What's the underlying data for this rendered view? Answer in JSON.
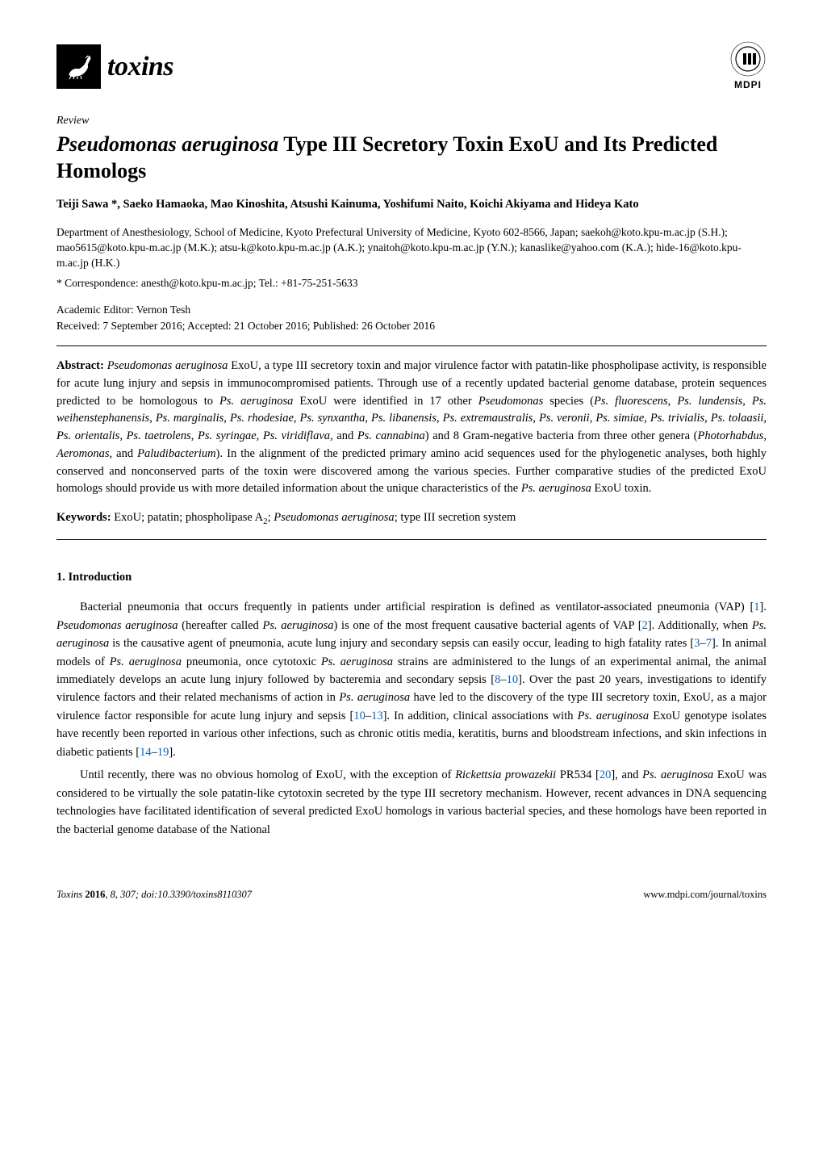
{
  "journal": {
    "name": "toxins"
  },
  "publisher": {
    "name": "MDPI"
  },
  "article_type": "Review",
  "title": {
    "full": "Pseudomonas aeruginosa Type III Secretory Toxin ExoU and Its Predicted Homologs",
    "italic_part": "Pseudomonas aeruginosa",
    "rest_part": " Type III Secretory Toxin ExoU and Its Predicted Homologs"
  },
  "authors": "Teiji Sawa *, Saeko Hamaoka, Mao Kinoshita, Atsushi Kainuma, Yoshifumi Naito, Koichi Akiyama and Hideya Kato",
  "affiliation": "Department of Anesthesiology, School of Medicine, Kyoto Prefectural University of Medicine, Kyoto 602-8566, Japan; saekoh@koto.kpu-m.ac.jp (S.H.); mao5615@koto.kpu-m.ac.jp (M.K.); atsu-k@koto.kpu-m.ac.jp (A.K.); ynaitoh@koto.kpu-m.ac.jp (Y.N.); kanaslike@yahoo.com (K.A.); hide-16@koto.kpu-m.ac.jp (H.K.)",
  "correspondence": "* Correspondence: anesth@koto.kpu-m.ac.jp; Tel.: +81-75-251-5633",
  "editor": "Academic Editor: Vernon Tesh",
  "dates": "Received: 7 September 2016; Accepted: 21 October 2016; Published: 26 October 2016",
  "abstract": {
    "label": "Abstract:",
    "text_parts": [
      {
        "italic": true,
        "t": "Pseudomonas aeruginosa"
      },
      {
        "italic": false,
        "t": " ExoU, a type III secretory toxin and major virulence factor with patatin-like phospholipase activity, is responsible for acute lung injury and sepsis in immunocompromised patients. Through use of a recently updated bacterial genome database, protein sequences predicted to be homologous to "
      },
      {
        "italic": true,
        "t": "Ps. aeruginosa"
      },
      {
        "italic": false,
        "t": " ExoU were identified in 17 other "
      },
      {
        "italic": true,
        "t": "Pseudomonas"
      },
      {
        "italic": false,
        "t": " species ("
      },
      {
        "italic": true,
        "t": "Ps. fluorescens"
      },
      {
        "italic": false,
        "t": ", "
      },
      {
        "italic": true,
        "t": "Ps. lundensis"
      },
      {
        "italic": false,
        "t": ", "
      },
      {
        "italic": true,
        "t": "Ps. weihenstephanensis"
      },
      {
        "italic": false,
        "t": ", "
      },
      {
        "italic": true,
        "t": "Ps. marginalis, Ps. rhodesiae, Ps. synxantha"
      },
      {
        "italic": false,
        "t": ", "
      },
      {
        "italic": true,
        "t": "Ps. libanensis"
      },
      {
        "italic": false,
        "t": ", "
      },
      {
        "italic": true,
        "t": "Ps. extremaustralis"
      },
      {
        "italic": false,
        "t": ", "
      },
      {
        "italic": true,
        "t": "Ps. veronii"
      },
      {
        "italic": false,
        "t": ", "
      },
      {
        "italic": true,
        "t": "Ps. simiae"
      },
      {
        "italic": false,
        "t": ", "
      },
      {
        "italic": true,
        "t": "Ps. trivialis"
      },
      {
        "italic": false,
        "t": ", "
      },
      {
        "italic": true,
        "t": "Ps. tolaasii"
      },
      {
        "italic": false,
        "t": ", "
      },
      {
        "italic": true,
        "t": "Ps. orientalis"
      },
      {
        "italic": false,
        "t": ", "
      },
      {
        "italic": true,
        "t": "Ps. taetrolens"
      },
      {
        "italic": false,
        "t": ", "
      },
      {
        "italic": true,
        "t": "Ps. syringae"
      },
      {
        "italic": false,
        "t": ", "
      },
      {
        "italic": true,
        "t": "Ps. viridiflava"
      },
      {
        "italic": false,
        "t": ", and "
      },
      {
        "italic": true,
        "t": "Ps. cannabina"
      },
      {
        "italic": false,
        "t": ") and 8 Gram-negative bacteria from three other genera ("
      },
      {
        "italic": true,
        "t": "Photorhabdus"
      },
      {
        "italic": false,
        "t": ", "
      },
      {
        "italic": true,
        "t": "Aeromonas"
      },
      {
        "italic": false,
        "t": ", and "
      },
      {
        "italic": true,
        "t": "Paludibacterium"
      },
      {
        "italic": false,
        "t": "). In the alignment of the predicted primary amino acid sequences used for the phylogenetic analyses, both highly conserved and nonconserved parts of the toxin were discovered among the various species. Further comparative studies of the predicted ExoU homologs should provide us with more detailed information about the unique characteristics of the "
      },
      {
        "italic": true,
        "t": "Ps. aeruginosa"
      },
      {
        "italic": false,
        "t": " ExoU toxin."
      }
    ]
  },
  "keywords": {
    "label": "Keywords:",
    "text_parts": [
      {
        "italic": false,
        "t": " ExoU; patatin; phospholipase A"
      },
      {
        "sub": true,
        "t": "2"
      },
      {
        "italic": false,
        "t": "; "
      },
      {
        "italic": true,
        "t": "Pseudomonas aeruginosa"
      },
      {
        "italic": false,
        "t": "; type III secretion system"
      }
    ]
  },
  "section1": {
    "heading": "1.  Introduction"
  },
  "para1": [
    {
      "t": "Bacterial pneumonia that occurs frequently in patients under artificial respiration is defined as ventilator-associated pneumonia (VAP) ["
    },
    {
      "ref": true,
      "t": "1"
    },
    {
      "t": "]. "
    },
    {
      "italic": true,
      "t": "Pseudomonas aeruginosa"
    },
    {
      "t": " (hereafter called "
    },
    {
      "italic": true,
      "t": "Ps. aeruginosa"
    },
    {
      "t": ") is one of the most frequent causative bacterial agents of VAP ["
    },
    {
      "ref": true,
      "t": "2"
    },
    {
      "t": "]. Additionally, when "
    },
    {
      "italic": true,
      "t": "Ps. aeruginosa"
    },
    {
      "t": " is the causative agent of pneumonia, acute lung injury and secondary sepsis can easily occur, leading to high fatality rates ["
    },
    {
      "ref": true,
      "t": "3"
    },
    {
      "t": "–"
    },
    {
      "ref": true,
      "t": "7"
    },
    {
      "t": "]. In animal models of "
    },
    {
      "italic": true,
      "t": "Ps. aeruginosa"
    },
    {
      "t": " pneumonia, once cytotoxic "
    },
    {
      "italic": true,
      "t": "Ps. aeruginosa"
    },
    {
      "t": " strains are administered to the lungs of an experimental animal, the animal immediately develops an acute lung injury followed by bacteremia and secondary sepsis ["
    },
    {
      "ref": true,
      "t": "8"
    },
    {
      "t": "–"
    },
    {
      "ref": true,
      "t": "10"
    },
    {
      "t": "]. Over the past 20 years, investigations to identify virulence factors and their related mechanisms of action in "
    },
    {
      "italic": true,
      "t": "Ps. aeruginosa"
    },
    {
      "t": " have led to the discovery of the type III secretory toxin, ExoU, as a major virulence factor responsible for acute lung injury and sepsis ["
    },
    {
      "ref": true,
      "t": "10"
    },
    {
      "t": "–"
    },
    {
      "ref": true,
      "t": "13"
    },
    {
      "t": "]. In addition, clinical associations with "
    },
    {
      "italic": true,
      "t": "Ps. aeruginosa"
    },
    {
      "t": " ExoU genotype isolates have recently been reported in various other infections, such as chronic otitis media, keratitis, burns and bloodstream infections, and skin infections in diabetic patients ["
    },
    {
      "ref": true,
      "t": "14"
    },
    {
      "t": "–"
    },
    {
      "ref": true,
      "t": "19"
    },
    {
      "t": "]."
    }
  ],
  "para2": [
    {
      "t": "Until recently, there was no obvious homolog of ExoU, with the exception of "
    },
    {
      "italic": true,
      "t": "Rickettsia prowazekii"
    },
    {
      "t": " PR534 ["
    },
    {
      "ref": true,
      "t": "20"
    },
    {
      "t": "], and "
    },
    {
      "italic": true,
      "t": "Ps. aeruginosa"
    },
    {
      "t": " ExoU was considered to be virtually the sole patatin-like cytotoxin secreted by the type III secretory mechanism. However, recent advances in DNA sequencing technologies have facilitated identification of several predicted ExoU homologs in various bacterial species, and these homologs have been reported in the bacterial genome database of the National"
    }
  ],
  "footer": {
    "left": "Toxins 2016, 8, 307; doi:10.3390/toxins8110307",
    "left_italic": "Toxins ",
    "left_bold": "2016",
    "left_rest": ", 8, 307; doi:10.3390/toxins8110307",
    "right": "www.mdpi.com/journal/toxins"
  },
  "colors": {
    "ref_link": "#0563c1",
    "text": "#000000",
    "bg": "#ffffff"
  }
}
